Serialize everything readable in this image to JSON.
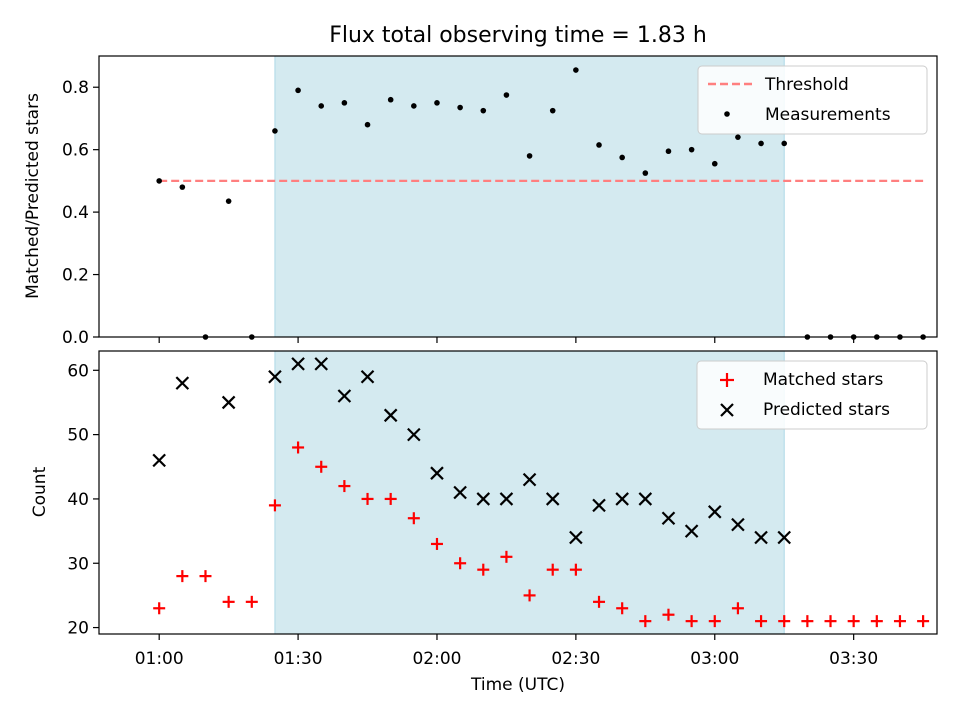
{
  "chart_data": [
    {
      "type": "scatter",
      "title": "Flux total observing time = 1.83 h",
      "xlabel": "",
      "ylabel": "Matched/Predicted stars",
      "ylim": [
        0,
        0.9
      ],
      "yticks": [
        "0.0",
        "0.2",
        "0.4",
        "0.6",
        "0.8"
      ],
      "xlim": [
        "00:47",
        "03:48"
      ],
      "shaded_interval": [
        "01:25",
        "03:15"
      ],
      "shade_color": "#d4eaf0",
      "legend_position": "top-right",
      "series": [
        {
          "name": "Threshold",
          "style": "dashed-line",
          "color": "#ff7f7f",
          "x": [
            "01:00",
            "03:45"
          ],
          "y": [
            0.5,
            0.5
          ]
        },
        {
          "name": "Measurements",
          "style": "dot",
          "color": "#000000",
          "x": [
            "01:00",
            "01:05",
            "01:10",
            "01:15",
            "01:20",
            "01:25",
            "01:30",
            "01:35",
            "01:40",
            "01:45",
            "01:50",
            "01:55",
            "02:00",
            "02:05",
            "02:10",
            "02:15",
            "02:20",
            "02:25",
            "02:30",
            "02:35",
            "02:40",
            "02:45",
            "02:50",
            "02:55",
            "03:00",
            "03:05",
            "03:10",
            "03:15",
            "03:20",
            "03:25",
            "03:30",
            "03:35",
            "03:40",
            "03:45"
          ],
          "y": [
            0.5,
            0.48,
            0.0,
            0.435,
            0.0,
            0.66,
            0.79,
            0.74,
            0.75,
            0.68,
            0.76,
            0.74,
            0.75,
            0.735,
            0.725,
            0.775,
            0.58,
            0.725,
            0.855,
            0.615,
            0.575,
            0.525,
            0.595,
            0.6,
            0.555,
            0.64,
            0.62,
            0.62,
            0.0,
            0.0,
            0.0,
            0.0,
            0.0,
            0.0
          ]
        }
      ]
    },
    {
      "type": "scatter",
      "title": "",
      "xlabel": "Time (UTC)",
      "ylabel": "Count",
      "ylim": [
        19,
        63
      ],
      "yticks": [
        "20",
        "30",
        "40",
        "50",
        "60"
      ],
      "xticks": [
        "01:00",
        "01:30",
        "02:00",
        "02:30",
        "03:00",
        "03:30"
      ],
      "xlim": [
        "00:47",
        "03:48"
      ],
      "shaded_interval": [
        "01:25",
        "03:15"
      ],
      "shade_color": "#d4eaf0",
      "legend_position": "top-right",
      "series": [
        {
          "name": "Matched stars",
          "style": "plus",
          "color": "#ff0000",
          "x": [
            "01:00",
            "01:05",
            "01:10",
            "01:15",
            "01:20",
            "01:25",
            "01:30",
            "01:35",
            "01:40",
            "01:45",
            "01:50",
            "01:55",
            "02:00",
            "02:05",
            "02:10",
            "02:15",
            "02:20",
            "02:25",
            "02:30",
            "02:35",
            "02:40",
            "02:45",
            "02:50",
            "02:55",
            "03:00",
            "03:05",
            "03:10",
            "03:15",
            "03:20",
            "03:25",
            "03:30",
            "03:35",
            "03:40",
            "03:45"
          ],
          "y": [
            23,
            28,
            28,
            24,
            24,
            39,
            48,
            45,
            42,
            40,
            40,
            37,
            33,
            30,
            29,
            31,
            25,
            29,
            29,
            24,
            23,
            21,
            22,
            21,
            21,
            23,
            21,
            21,
            21,
            21,
            21,
            21,
            21,
            21
          ]
        },
        {
          "name": "Predicted stars",
          "style": "x",
          "color": "#000000",
          "x": [
            "01:00",
            "01:05",
            "01:15",
            "01:25",
            "01:30",
            "01:35",
            "01:40",
            "01:45",
            "01:50",
            "01:55",
            "02:00",
            "02:05",
            "02:10",
            "02:15",
            "02:20",
            "02:25",
            "02:30",
            "02:35",
            "02:40",
            "02:45",
            "02:50",
            "02:55",
            "03:00",
            "03:05",
            "03:10",
            "03:15"
          ],
          "y": [
            46,
            58,
            55,
            59,
            61,
            61,
            56,
            59,
            53,
            50,
            44,
            41,
            40,
            40,
            43,
            40,
            34,
            39,
            40,
            40,
            37,
            35,
            38,
            36,
            34,
            34
          ]
        }
      ]
    }
  ]
}
